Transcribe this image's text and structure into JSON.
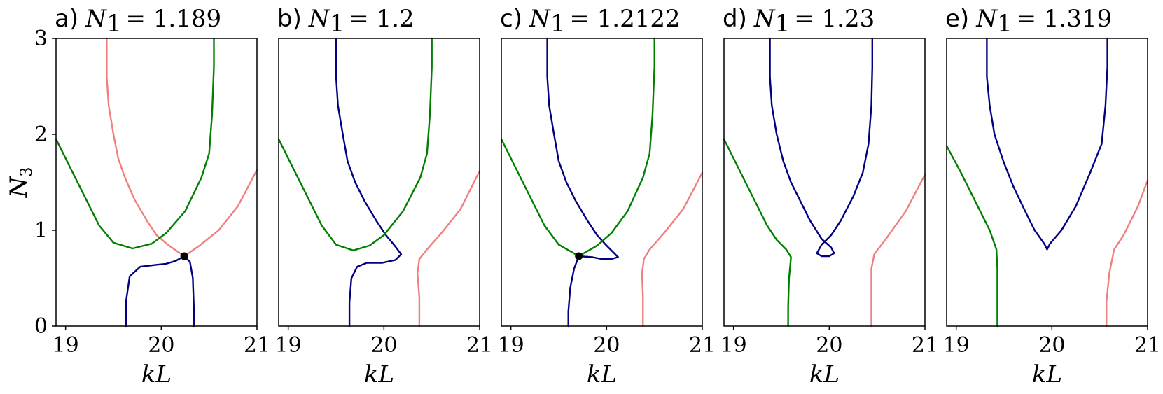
{
  "chart_data": [
    {
      "type": "line",
      "panel_label": "a)",
      "title_var": "N",
      "title_sub": "1",
      "title_value": "= 1.189",
      "xlabel": "kL",
      "ylabel": "N3",
      "xlim": [
        18.9,
        21.0
      ],
      "ylim": [
        0,
        3
      ],
      "xticks": [
        "19",
        "20",
        "21"
      ],
      "yticks": [
        "0",
        "1",
        "2",
        "3"
      ],
      "grid": false,
      "markers": [
        {
          "x": 20.24,
          "y": 0.73
        }
      ],
      "series": [
        {
          "color": "#f08080",
          "points": [
            [
              19.43,
              3.0
            ],
            [
              19.43,
              2.6
            ],
            [
              19.45,
              2.3
            ],
            [
              19.5,
              2.0
            ],
            [
              19.55,
              1.75
            ],
            [
              19.62,
              1.55
            ],
            [
              19.72,
              1.32
            ],
            [
              19.85,
              1.1
            ],
            [
              19.95,
              0.95
            ],
            [
              20.08,
              0.84
            ],
            [
              20.24,
              0.73
            ],
            [
              20.4,
              0.84
            ],
            [
              20.6,
              1.0
            ],
            [
              20.8,
              1.25
            ],
            [
              21.0,
              1.63
            ]
          ]
        },
        {
          "color": "#007f00",
          "points": [
            [
              18.9,
              1.95
            ],
            [
              19.05,
              1.65
            ],
            [
              19.2,
              1.35
            ],
            [
              19.35,
              1.05
            ],
            [
              19.5,
              0.87
            ],
            [
              19.7,
              0.81
            ],
            [
              19.9,
              0.86
            ],
            [
              20.05,
              0.97
            ],
            [
              20.25,
              1.2
            ],
            [
              20.42,
              1.55
            ],
            [
              20.5,
              1.8
            ],
            [
              20.53,
              2.2
            ],
            [
              20.55,
              2.7
            ],
            [
              20.55,
              3.0
            ]
          ]
        },
        {
          "color": "#000080",
          "points": [
            [
              19.63,
              0
            ],
            [
              19.63,
              0.25
            ],
            [
              19.67,
              0.52
            ],
            [
              19.78,
              0.62
            ],
            [
              19.95,
              0.64
            ],
            [
              20.05,
              0.65
            ],
            [
              20.15,
              0.68
            ],
            [
              20.24,
              0.73
            ],
            [
              20.3,
              0.67
            ],
            [
              20.33,
              0.5
            ],
            [
              20.34,
              0.2
            ],
            [
              20.34,
              0
            ]
          ]
        }
      ]
    },
    {
      "type": "line",
      "panel_label": "b)",
      "title_var": "N",
      "title_sub": "1",
      "title_value": "= 1.2",
      "xlabel": "kL",
      "xlim": [
        18.9,
        21.0
      ],
      "ylim": [
        0,
        3
      ],
      "xticks": [
        "19",
        "20",
        "21"
      ],
      "yticks": [],
      "grid": false,
      "markers": [],
      "series": [
        {
          "color": "#000080",
          "points": [
            [
              19.5,
              3.0
            ],
            [
              19.5,
              2.6
            ],
            [
              19.52,
              2.3
            ],
            [
              19.57,
              2.0
            ],
            [
              19.62,
              1.72
            ],
            [
              19.7,
              1.5
            ],
            [
              19.8,
              1.3
            ],
            [
              19.92,
              1.1
            ],
            [
              20.02,
              0.95
            ],
            [
              20.12,
              0.83
            ],
            [
              20.18,
              0.75
            ],
            [
              20.12,
              0.69
            ],
            [
              19.98,
              0.66
            ],
            [
              19.82,
              0.66
            ],
            [
              19.72,
              0.62
            ],
            [
              19.66,
              0.5
            ],
            [
              19.64,
              0.25
            ],
            [
              19.64,
              0
            ]
          ]
        },
        {
          "color": "#007f00",
          "points": [
            [
              18.9,
              1.95
            ],
            [
              19.05,
              1.65
            ],
            [
              19.2,
              1.35
            ],
            [
              19.35,
              1.05
            ],
            [
              19.5,
              0.85
            ],
            [
              19.68,
              0.79
            ],
            [
              19.85,
              0.84
            ],
            [
              20.0,
              0.95
            ],
            [
              20.2,
              1.2
            ],
            [
              20.38,
              1.55
            ],
            [
              20.45,
              1.8
            ],
            [
              20.48,
              2.2
            ],
            [
              20.5,
              2.7
            ],
            [
              20.5,
              3.0
            ]
          ]
        },
        {
          "color": "#f08080",
          "points": [
            [
              20.37,
              0
            ],
            [
              20.37,
              0.3
            ],
            [
              20.35,
              0.55
            ],
            [
              20.37,
              0.7
            ],
            [
              20.45,
              0.8
            ],
            [
              20.6,
              0.97
            ],
            [
              20.8,
              1.22
            ],
            [
              21.0,
              1.62
            ]
          ]
        }
      ]
    },
    {
      "type": "line",
      "panel_label": "c)",
      "title_var": "N",
      "title_sub": "1",
      "title_value": "= 1.2122",
      "xlabel": "kL",
      "xlim": [
        18.9,
        21.0
      ],
      "ylim": [
        0,
        3
      ],
      "xticks": [
        "19",
        "20",
        "21"
      ],
      "yticks": [],
      "grid": false,
      "markers": [
        {
          "x": 19.71,
          "y": 0.73
        }
      ],
      "series": [
        {
          "color": "#000080",
          "points": [
            [
              19.38,
              3.0
            ],
            [
              19.38,
              2.6
            ],
            [
              19.4,
              2.3
            ],
            [
              19.45,
              2.0
            ],
            [
              19.5,
              1.72
            ],
            [
              19.58,
              1.5
            ],
            [
              19.68,
              1.3
            ],
            [
              19.8,
              1.1
            ],
            [
              19.9,
              0.95
            ],
            [
              20.0,
              0.84
            ],
            [
              20.08,
              0.76
            ],
            [
              20.12,
              0.72
            ],
            [
              20.05,
              0.7
            ],
            [
              19.95,
              0.7
            ],
            [
              19.85,
              0.72
            ],
            [
              19.71,
              0.73
            ],
            [
              19.66,
              0.6
            ],
            [
              19.62,
              0.4
            ],
            [
              19.6,
              0.15
            ],
            [
              19.6,
              0
            ]
          ]
        },
        {
          "color": "#007f00",
          "points": [
            [
              18.9,
              1.95
            ],
            [
              19.05,
              1.65
            ],
            [
              19.2,
              1.35
            ],
            [
              19.35,
              1.05
            ],
            [
              19.5,
              0.85
            ],
            [
              19.71,
              0.73
            ],
            [
              19.9,
              0.84
            ],
            [
              20.05,
              0.97
            ],
            [
              20.22,
              1.2
            ],
            [
              20.38,
              1.55
            ],
            [
              20.45,
              1.8
            ],
            [
              20.48,
              2.2
            ],
            [
              20.5,
              2.7
            ],
            [
              20.5,
              3.0
            ]
          ]
        },
        {
          "color": "#f08080",
          "points": [
            [
              20.38,
              0
            ],
            [
              20.38,
              0.3
            ],
            [
              20.37,
              0.55
            ],
            [
              20.39,
              0.7
            ],
            [
              20.45,
              0.8
            ],
            [
              20.6,
              0.97
            ],
            [
              20.8,
              1.22
            ],
            [
              21.0,
              1.6
            ]
          ]
        }
      ]
    },
    {
      "type": "line",
      "panel_label": "d)",
      "title_var": "N",
      "title_sub": "1",
      "title_value": "= 1.23",
      "xlabel": "kL",
      "xlim": [
        18.9,
        21.0
      ],
      "ylim": [
        0,
        3
      ],
      "xticks": [
        "19",
        "20",
        "21"
      ],
      "yticks": [],
      "grid": false,
      "markers": [],
      "series": [
        {
          "color": "#000080",
          "points": [
            [
              19.38,
              3.0
            ],
            [
              19.38,
              2.6
            ],
            [
              19.4,
              2.3
            ],
            [
              19.45,
              2.0
            ],
            [
              19.52,
              1.72
            ],
            [
              19.6,
              1.5
            ],
            [
              19.7,
              1.3
            ],
            [
              19.8,
              1.1
            ],
            [
              19.92,
              0.91
            ],
            [
              20.02,
              0.82
            ],
            [
              20.05,
              0.76
            ],
            [
              20.0,
              0.73
            ],
            [
              19.92,
              0.73
            ],
            [
              19.87,
              0.76
            ],
            [
              19.92,
              0.85
            ],
            [
              20.02,
              0.95
            ],
            [
              20.12,
              1.1
            ],
            [
              20.25,
              1.35
            ],
            [
              20.35,
              1.6
            ],
            [
              20.41,
              1.9
            ],
            [
              20.44,
              2.3
            ],
            [
              20.45,
              2.7
            ],
            [
              20.45,
              3.0
            ]
          ]
        },
        {
          "color": "#007f00",
          "points": [
            [
              18.9,
              1.95
            ],
            [
              19.05,
              1.65
            ],
            [
              19.2,
              1.35
            ],
            [
              19.35,
              1.05
            ],
            [
              19.45,
              0.9
            ],
            [
              19.55,
              0.8
            ],
            [
              19.6,
              0.72
            ],
            [
              19.58,
              0.5
            ],
            [
              19.57,
              0.2
            ],
            [
              19.57,
              0
            ]
          ]
        },
        {
          "color": "#f08080",
          "points": [
            [
              20.44,
              0
            ],
            [
              20.44,
              0.3
            ],
            [
              20.44,
              0.6
            ],
            [
              20.47,
              0.75
            ],
            [
              20.6,
              0.92
            ],
            [
              20.8,
              1.2
            ],
            [
              21.0,
              1.58
            ]
          ]
        }
      ]
    },
    {
      "type": "line",
      "panel_label": "e)",
      "title_var": "N",
      "title_sub": "1",
      "title_value": "= 1.319",
      "xlabel": "kL",
      "xlim": [
        18.9,
        21.0
      ],
      "ylim": [
        0,
        3
      ],
      "xticks": [
        "19",
        "20",
        "21"
      ],
      "yticks": [],
      "grid": false,
      "markers": [],
      "series": [
        {
          "color": "#000080",
          "points": [
            [
              19.32,
              3.0
            ],
            [
              19.32,
              2.6
            ],
            [
              19.35,
              2.3
            ],
            [
              19.4,
              2.0
            ],
            [
              19.5,
              1.7
            ],
            [
              19.6,
              1.45
            ],
            [
              19.72,
              1.2
            ],
            [
              19.82,
              1.0
            ],
            [
              19.92,
              0.86
            ],
            [
              19.95,
              0.8
            ],
            [
              19.98,
              0.86
            ],
            [
              20.1,
              1.0
            ],
            [
              20.25,
              1.25
            ],
            [
              20.4,
              1.6
            ],
            [
              20.52,
              1.9
            ],
            [
              20.56,
              2.3
            ],
            [
              20.58,
              2.7
            ],
            [
              20.58,
              3.0
            ]
          ]
        },
        {
          "color": "#007f00",
          "points": [
            [
              18.9,
              1.88
            ],
            [
              19.05,
              1.6
            ],
            [
              19.2,
              1.3
            ],
            [
              19.35,
              1.0
            ],
            [
              19.42,
              0.8
            ],
            [
              19.43,
              0.6
            ],
            [
              19.43,
              0.3
            ],
            [
              19.43,
              0
            ]
          ]
        },
        {
          "color": "#f08080",
          "points": [
            [
              20.57,
              0
            ],
            [
              20.57,
              0.25
            ],
            [
              20.6,
              0.55
            ],
            [
              20.65,
              0.8
            ],
            [
              20.75,
              0.95
            ],
            [
              20.9,
              1.25
            ],
            [
              21.0,
              1.52
            ]
          ]
        }
      ]
    }
  ]
}
